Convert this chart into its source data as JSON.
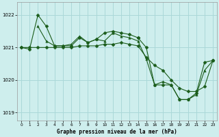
{
  "background_color": "#ceeeed",
  "grid_color": "#aad8d8",
  "line_color": "#1a5c1a",
  "title": "Graphe pression niveau de la mer (hPa)",
  "xlim": [
    -0.5,
    23.5
  ],
  "ylim": [
    1018.75,
    1022.4
  ],
  "yticks": [
    1019,
    1020,
    1021,
    1022
  ],
  "xticks": [
    0,
    1,
    2,
    3,
    4,
    5,
    6,
    7,
    8,
    9,
    10,
    11,
    12,
    13,
    14,
    15,
    16,
    17,
    18,
    19,
    20,
    21,
    22,
    23
  ],
  "series": [
    {
      "x": [
        0,
        1,
        2,
        3,
        4,
        5,
        6,
        7,
        8,
        9,
        10,
        11,
        12,
        13,
        14
      ],
      "y": [
        1021.0,
        1020.95,
        1022.0,
        1021.65,
        1021.05,
        1021.05,
        1021.05,
        1021.3,
        1021.15,
        1021.25,
        1021.45,
        1021.5,
        1021.45,
        1021.4,
        1021.3
      ],
      "marker": "D",
      "markersize": 2.5
    },
    {
      "x": [
        2,
        3,
        4,
        5,
        6,
        7,
        8,
        9,
        10,
        11,
        12,
        13,
        14,
        15,
        16,
        17,
        18,
        19,
        20,
        21,
        22,
        23
      ],
      "y": [
        1021.65,
        1021.2,
        1021.05,
        1021.05,
        1021.1,
        1021.35,
        1021.15,
        1021.25,
        1021.2,
        1021.45,
        1021.35,
        1021.3,
        1021.2,
        1020.65,
        1019.85,
        1019.95,
        1019.85,
        1019.4,
        1019.4,
        1019.55,
        1020.3,
        1020.6
      ],
      "marker": "^",
      "markersize": 2.5
    },
    {
      "x": [
        0,
        1,
        2,
        3,
        4,
        5,
        6,
        7,
        8,
        9,
        10,
        11,
        12,
        13,
        14,
        15,
        16,
        17,
        18,
        19,
        20,
        21,
        22,
        23
      ],
      "y": [
        1021.0,
        1021.0,
        1021.0,
        1021.0,
        1021.0,
        1021.0,
        1021.0,
        1021.05,
        1021.05,
        1021.05,
        1021.1,
        1021.1,
        1021.15,
        1021.1,
        1021.05,
        1020.7,
        1020.45,
        1020.3,
        1020.0,
        1019.75,
        1019.65,
        1019.65,
        1019.8,
        1020.6
      ],
      "marker": "D",
      "markersize": 2.5
    },
    {
      "x": [
        14,
        15,
        16,
        17,
        18,
        19,
        20,
        21,
        22,
        23
      ],
      "y": [
        1021.3,
        1021.0,
        1019.85,
        1019.85,
        1019.85,
        1019.4,
        1019.4,
        1019.6,
        1020.55,
        1020.6
      ],
      "marker": "D",
      "markersize": 2.5
    }
  ]
}
